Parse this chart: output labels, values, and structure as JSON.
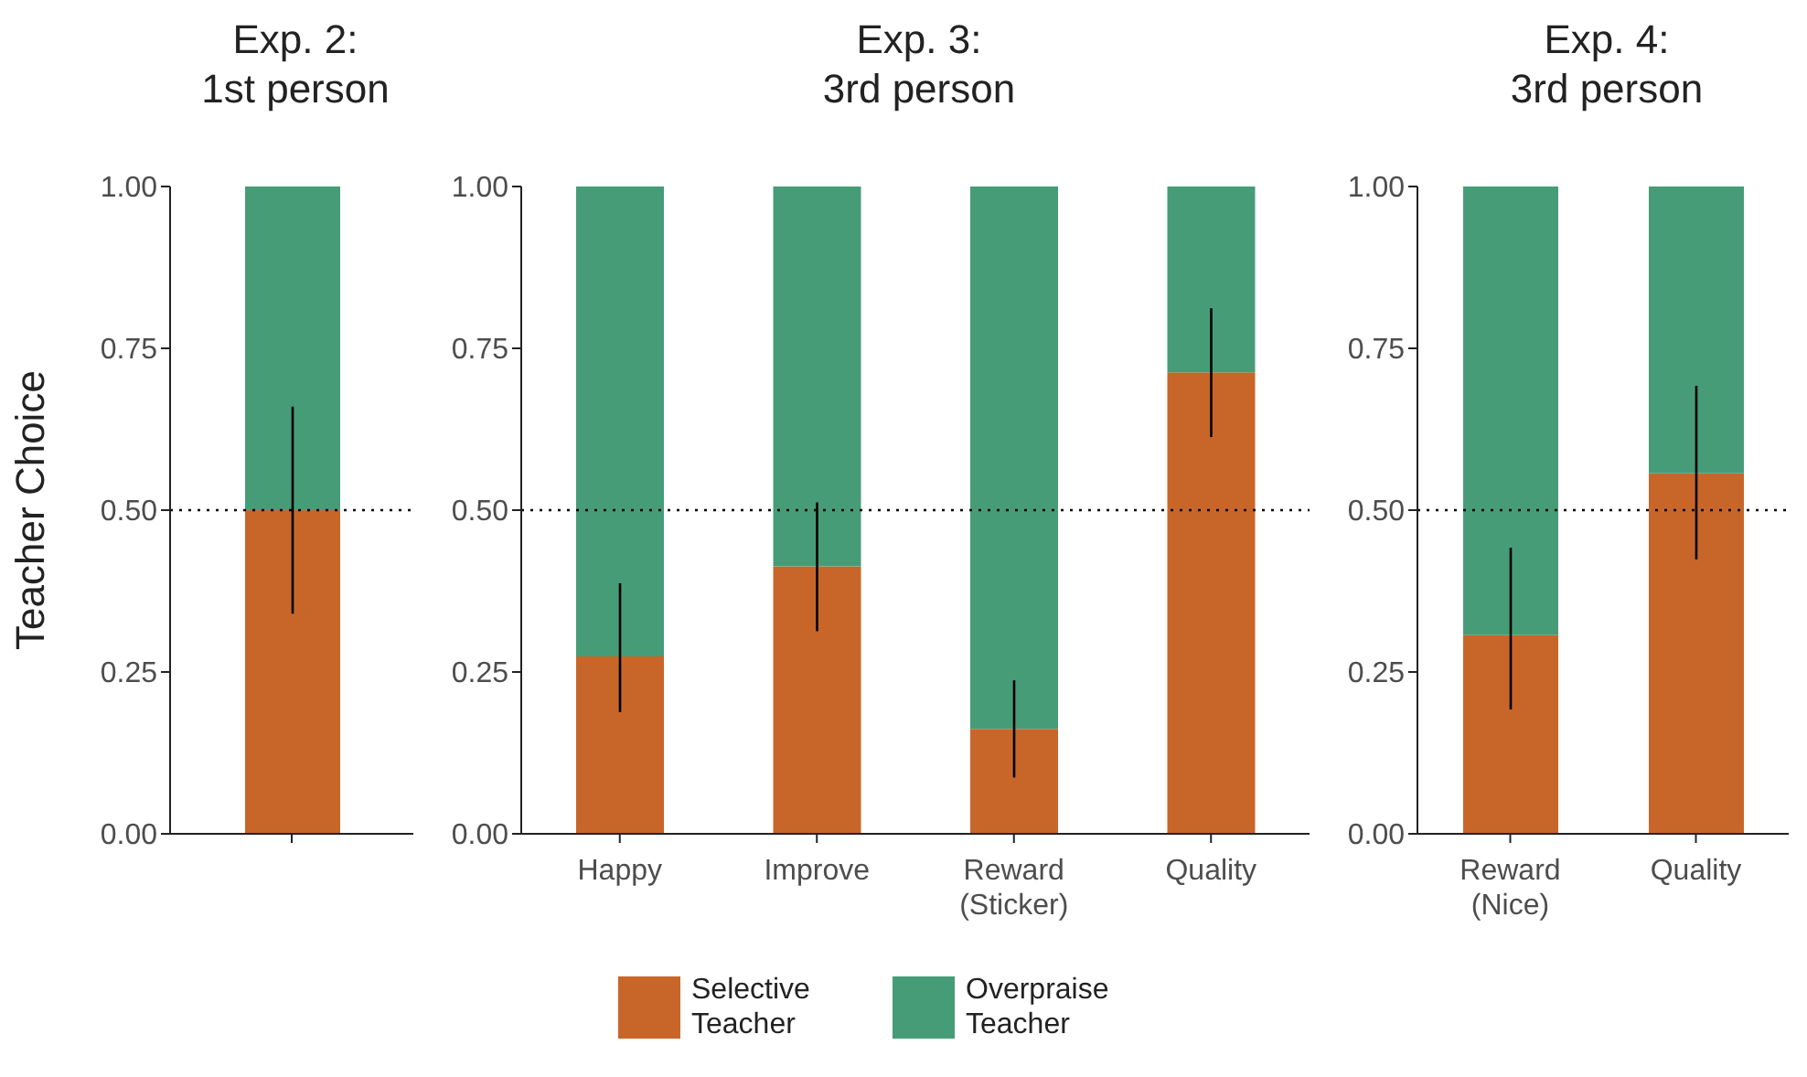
{
  "chart_data": [
    {
      "type": "bar",
      "stacked": true,
      "title": "Exp. 2:\n1st person",
      "ylabel": "Teacher Choice",
      "categories": [
        null
      ],
      "series": [
        {
          "color": "#c8662a",
          "values": [
            0.5
          ],
          "errors": [
            [
              0.34,
              0.66
            ]
          ]
        },
        {
          "color": "#479c78",
          "values": [
            0.5
          ]
        }
      ],
      "ylim": [
        0,
        1
      ],
      "yticks": [
        {
          "value": 0,
          "label": "0.00"
        },
        {
          "value": 0.25,
          "label": "0.25"
        },
        {
          "value": 0.5,
          "label": "0.50"
        },
        {
          "value": 0.75,
          "label": "0.75"
        },
        {
          "value": 1,
          "label": "1.00"
        }
      ],
      "ref_lines": [
        {
          "axis": "y",
          "value": 0.5,
          "line_style": "dotted"
        }
      ],
      "grid": false,
      "legend": false
    },
    {
      "type": "bar",
      "stacked": true,
      "title": "Exp. 3:\n3rd person",
      "categories": [
        "Happy",
        "Improve",
        "Reward\n(Sticker)",
        "Quality"
      ],
      "series": [
        {
          "name": "Selective Teacher",
          "color": "#c8662a",
          "values": [
            0.274,
            0.413,
            0.162,
            0.713
          ],
          "errors": [
            [
              0.188,
              0.387
            ],
            [
              0.313,
              0.512
            ],
            [
              0.087,
              0.237
            ],
            [
              0.613,
              0.812
            ]
          ]
        },
        {
          "name": "Overpraise Teacher",
          "color": "#479c78",
          "values": [
            0.726,
            0.587,
            0.838,
            0.287
          ]
        }
      ],
      "ylim": [
        0,
        1
      ],
      "yticks": [
        {
          "value": 0,
          "label": "0.00"
        },
        {
          "value": 0.25,
          "label": "0.25"
        },
        {
          "value": 0.5,
          "label": "0.50"
        },
        {
          "value": 0.75,
          "label": "0.75"
        },
        {
          "value": 1,
          "label": "1.00"
        }
      ],
      "ref_lines": [
        {
          "axis": "y",
          "value": 0.5,
          "line_style": "dotted"
        }
      ],
      "grid": false,
      "legend": "bottom"
    },
    {
      "type": "bar",
      "stacked": true,
      "title": "Exp. 4:\n3rd person",
      "categories": [
        "Reward\n(Nice)",
        "Quality"
      ],
      "series": [
        {
          "color": "#c8662a",
          "values": [
            0.307,
            0.557
          ],
          "errors": [
            [
              0.192,
              0.442
            ],
            [
              0.424,
              0.692
            ]
          ]
        },
        {
          "color": "#479c78",
          "values": [
            0.693,
            0.443
          ]
        }
      ],
      "ylim": [
        0,
        1
      ],
      "yticks": [
        {
          "value": 0,
          "label": "0.00"
        },
        {
          "value": 0.25,
          "label": "0.25"
        },
        {
          "value": 0.5,
          "label": "0.50"
        },
        {
          "value": 0.75,
          "label": "0.75"
        },
        {
          "value": 1,
          "label": "1.00"
        }
      ],
      "ref_lines": [
        {
          "axis": "y",
          "value": 0.5,
          "line_style": "dotted"
        }
      ],
      "grid": false,
      "legend": false
    }
  ]
}
